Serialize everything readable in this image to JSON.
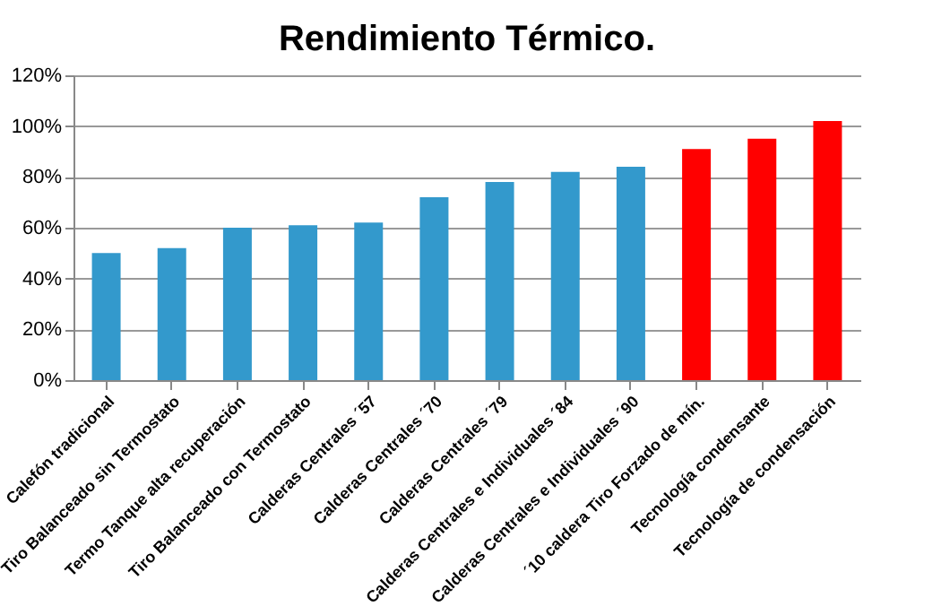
{
  "chart_data": {
    "type": "bar",
    "title": "Rendimiento Térmico.",
    "categories": [
      "Calefón tradicional",
      "Tiro Balanceado sin Termostato",
      "Termo Tanque alta recuperación",
      "Tiro Balanceado con  Termostato",
      "Calderas Centrales ´57",
      "Calderas Centrales ´70",
      "Calderas Centrales ´79",
      "Calderas Centrales e Individuales ´84",
      "Calderas Centrales e Individuales ´90",
      "´10 caldera Tiro Forzado de mín.",
      "Tecnología condensante",
      "Tecnología de condensación"
    ],
    "values": [
      0.5,
      0.52,
      0.6,
      0.61,
      0.62,
      0.72,
      0.78,
      0.82,
      0.84,
      0.91,
      0.95,
      1.02
    ],
    "colors": [
      "#3399cc",
      "#3399cc",
      "#3399cc",
      "#3399cc",
      "#3399cc",
      "#3399cc",
      "#3399cc",
      "#3399cc",
      "#3399cc",
      "#ff0000",
      "#ff0000",
      "#ff0000"
    ],
    "ylim": [
      0,
      1.2
    ],
    "yticks": [
      {
        "value": 0,
        "label": "0%"
      },
      {
        "value": 0.2,
        "label": "20%"
      },
      {
        "value": 0.4,
        "label": "40%"
      },
      {
        "value": 0.6,
        "label": "60%"
      },
      {
        "value": 0.8,
        "label": "80%"
      },
      {
        "value": 1.0,
        "label": "100%"
      },
      {
        "value": 1.2,
        "label": "120%"
      }
    ],
    "grid": "y"
  }
}
